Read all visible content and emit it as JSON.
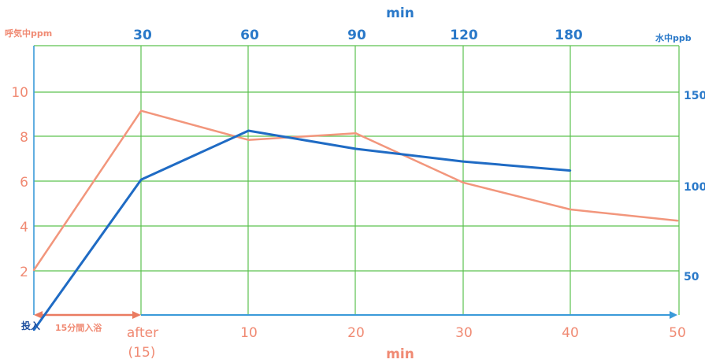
{
  "chart_data": {
    "type": "line",
    "top_axis": {
      "label": "min",
      "ticks": [
        "30",
        "60",
        "90",
        "120",
        "180"
      ],
      "color": "#2a79c9"
    },
    "bottom_axis": {
      "label": "min",
      "ticks": [
        "after",
        "10",
        "20",
        "30",
        "40",
        "50"
      ],
      "tick_sub": "(15)",
      "color": "#f08a73",
      "x_range": [
        0,
        50
      ]
    },
    "left_axis": {
      "label": "呼気中ppm",
      "ticks": [
        "2",
        "4",
        "6",
        "8",
        "10"
      ],
      "ylim": [
        0,
        11.5
      ],
      "color": "#f08a73"
    },
    "right_axis": {
      "label": "水中ppb",
      "ticks": [
        "50",
        "100",
        "150"
      ],
      "ylim": [
        20,
        175
      ],
      "color": "#2a79c9"
    },
    "start_label": "投入",
    "bath_label": "15分間入浴",
    "grid": true,
    "series": [
      {
        "axis": "left",
        "color": "#f2967c",
        "points": [
          [
            0,
            2.0
          ],
          [
            10,
            9.1
          ],
          [
            20,
            7.8
          ],
          [
            30,
            8.1
          ],
          [
            40,
            5.9
          ],
          [
            50,
            4.7
          ],
          [
            60,
            4.2
          ]
        ]
      },
      {
        "axis": "right",
        "color": "#1f6bc4",
        "points": [
          [
            0,
            20
          ],
          [
            10,
            103
          ],
          [
            20,
            130
          ],
          [
            30,
            120
          ],
          [
            40,
            113
          ],
          [
            50,
            108
          ]
        ]
      }
    ]
  }
}
